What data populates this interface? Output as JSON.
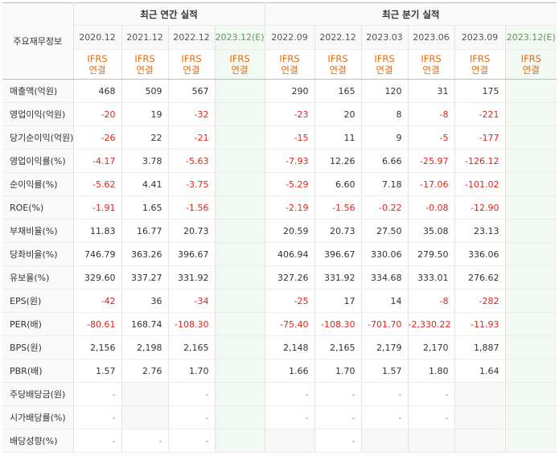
{
  "header": {
    "corner_label": "주요재무정보",
    "annual_title": "최근 연간 실적",
    "quarter_title": "최근 분기 실적"
  },
  "annual_periods": [
    "2020.12",
    "2021.12",
    "2022.12",
    "2023.12(E)"
  ],
  "quarter_periods": [
    "2022.09",
    "2022.12",
    "2023.03",
    "2023.06",
    "2023.09",
    "2023.12(E)"
  ],
  "ifrs": [
    "IFRS",
    "연결"
  ],
  "rows": [
    {
      "label": "매출액(억원)",
      "annual": [
        "468",
        "509",
        "567",
        ""
      ],
      "quarter": [
        "290",
        "165",
        "120",
        "31",
        "175",
        ""
      ]
    },
    {
      "label": "영업이익(억원)",
      "annual": [
        "-20",
        "19",
        "-32",
        ""
      ],
      "quarter": [
        "-23",
        "20",
        "8",
        "-8",
        "-221",
        ""
      ]
    },
    {
      "label": "당기순이익(억원)",
      "annual": [
        "-26",
        "22",
        "-21",
        ""
      ],
      "quarter": [
        "-15",
        "11",
        "9",
        "-5",
        "-177",
        ""
      ]
    },
    {
      "label": "영업이익률(%)",
      "annual": [
        "-4.17",
        "3.78",
        "-5.63",
        ""
      ],
      "quarter": [
        "-7.93",
        "12.26",
        "6.66",
        "-25.97",
        "-126.12",
        ""
      ]
    },
    {
      "label": "순이익률(%)",
      "annual": [
        "-5.62",
        "4.41",
        "-3.75",
        ""
      ],
      "quarter": [
        "-5.29",
        "6.60",
        "7.18",
        "-17.06",
        "-101.02",
        ""
      ]
    },
    {
      "label": "ROE(%)",
      "annual": [
        "-1.91",
        "1.65",
        "-1.56",
        ""
      ],
      "quarter": [
        "-2.19",
        "-1.56",
        "-0.22",
        "-0.08",
        "-12.90",
        ""
      ]
    },
    {
      "label": "부채비율(%)",
      "annual": [
        "11.83",
        "16.77",
        "20.73",
        ""
      ],
      "quarter": [
        "20.59",
        "20.73",
        "27.50",
        "35.08",
        "23.13",
        ""
      ]
    },
    {
      "label": "당좌비율(%)",
      "annual": [
        "746.79",
        "363.26",
        "396.67",
        ""
      ],
      "quarter": [
        "406.94",
        "396.67",
        "330.06",
        "279.50",
        "336.06",
        ""
      ]
    },
    {
      "label": "유보율(%)",
      "annual": [
        "329.60",
        "337.27",
        "331.92",
        ""
      ],
      "quarter": [
        "327.26",
        "331.92",
        "334.68",
        "333.01",
        "276.62",
        ""
      ]
    },
    {
      "label": "EPS(원)",
      "annual": [
        "-42",
        "36",
        "-34",
        ""
      ],
      "quarter": [
        "-25",
        "17",
        "14",
        "-8",
        "-282",
        ""
      ]
    },
    {
      "label": "PER(배)",
      "annual": [
        "-80.61",
        "168.74",
        "-108.30",
        ""
      ],
      "quarter": [
        "-75.40",
        "-108.30",
        "-701.70",
        "-2,330.22",
        "-11.93",
        ""
      ]
    },
    {
      "label": "BPS(원)",
      "annual": [
        "2,156",
        "2,198",
        "2,165",
        ""
      ],
      "quarter": [
        "2,148",
        "2,165",
        "2,179",
        "2,170",
        "1,887",
        ""
      ]
    },
    {
      "label": "PBR(배)",
      "annual": [
        "1.57",
        "2.76",
        "1.70",
        ""
      ],
      "quarter": [
        "1.66",
        "1.70",
        "1.57",
        "1.80",
        "1.64",
        ""
      ]
    },
    {
      "label": "주당배당금(원)",
      "annual": [
        "-",
        "",
        "-",
        ""
      ],
      "quarter": [
        "-",
        "-",
        "-",
        "-",
        "",
        ""
      ]
    },
    {
      "label": "시가배당률(%)",
      "annual": [
        "-",
        "",
        "-",
        ""
      ],
      "quarter": [
        "-",
        "-",
        "-",
        "-",
        "",
        ""
      ]
    },
    {
      "label": "배당성향(%)",
      "annual": [
        "-",
        "-",
        "-",
        ""
      ],
      "quarter": [
        "",
        "-",
        "",
        "",
        "",
        ""
      ]
    }
  ],
  "colors": {
    "negative": "#e0251b",
    "ifrs": "#e86a0c",
    "estimate_bg": "#f2f8f2",
    "empty_bg": "#f8f8f8"
  }
}
